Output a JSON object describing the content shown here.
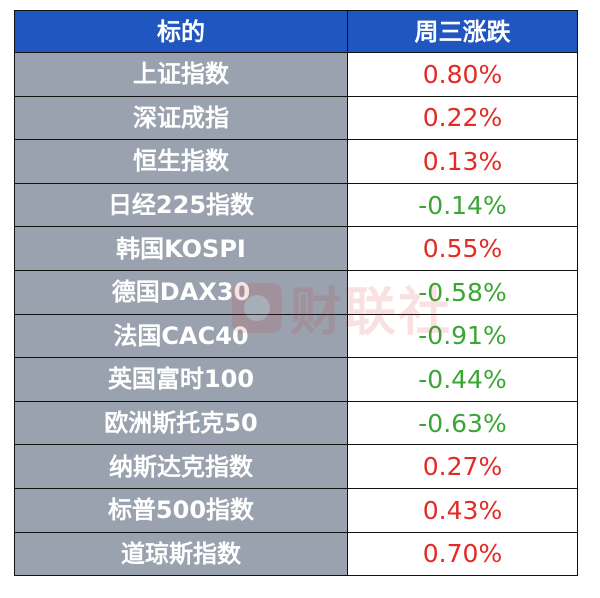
{
  "header": {
    "col_name": "标的",
    "col_change": "周三涨跌"
  },
  "rows": [
    {
      "name": "上证指数",
      "change": "0.80%",
      "direction": "up"
    },
    {
      "name": "深证成指",
      "change": "0.22%",
      "direction": "up"
    },
    {
      "name": "恒生指数",
      "change": "0.13%",
      "direction": "up"
    },
    {
      "name": "日经225指数",
      "change": "-0.14%",
      "direction": "down"
    },
    {
      "name": "韩国KOSPI",
      "change": "0.55%",
      "direction": "up"
    },
    {
      "name": "德国DAX30",
      "change": "-0.58%",
      "direction": "down"
    },
    {
      "name": "法国CAC40",
      "change": "-0.91%",
      "direction": "down"
    },
    {
      "name": "英国富时100",
      "change": "-0.44%",
      "direction": "down"
    },
    {
      "name": "欧洲斯托克50",
      "change": "-0.63%",
      "direction": "down"
    },
    {
      "name": "纳斯达克指数",
      "change": "0.27%",
      "direction": "up"
    },
    {
      "name": "标普500指数",
      "change": "0.43%",
      "direction": "up"
    },
    {
      "name": "道琼斯指数",
      "change": "0.70%",
      "direction": "up"
    }
  ],
  "watermark": {
    "text": "财联社",
    "icon": "cailianshe-logo-icon"
  },
  "colors": {
    "header_bg": "#1f56bf",
    "name_bg": "#99a2ae",
    "up": "#e32a24",
    "down": "#3aa635"
  }
}
